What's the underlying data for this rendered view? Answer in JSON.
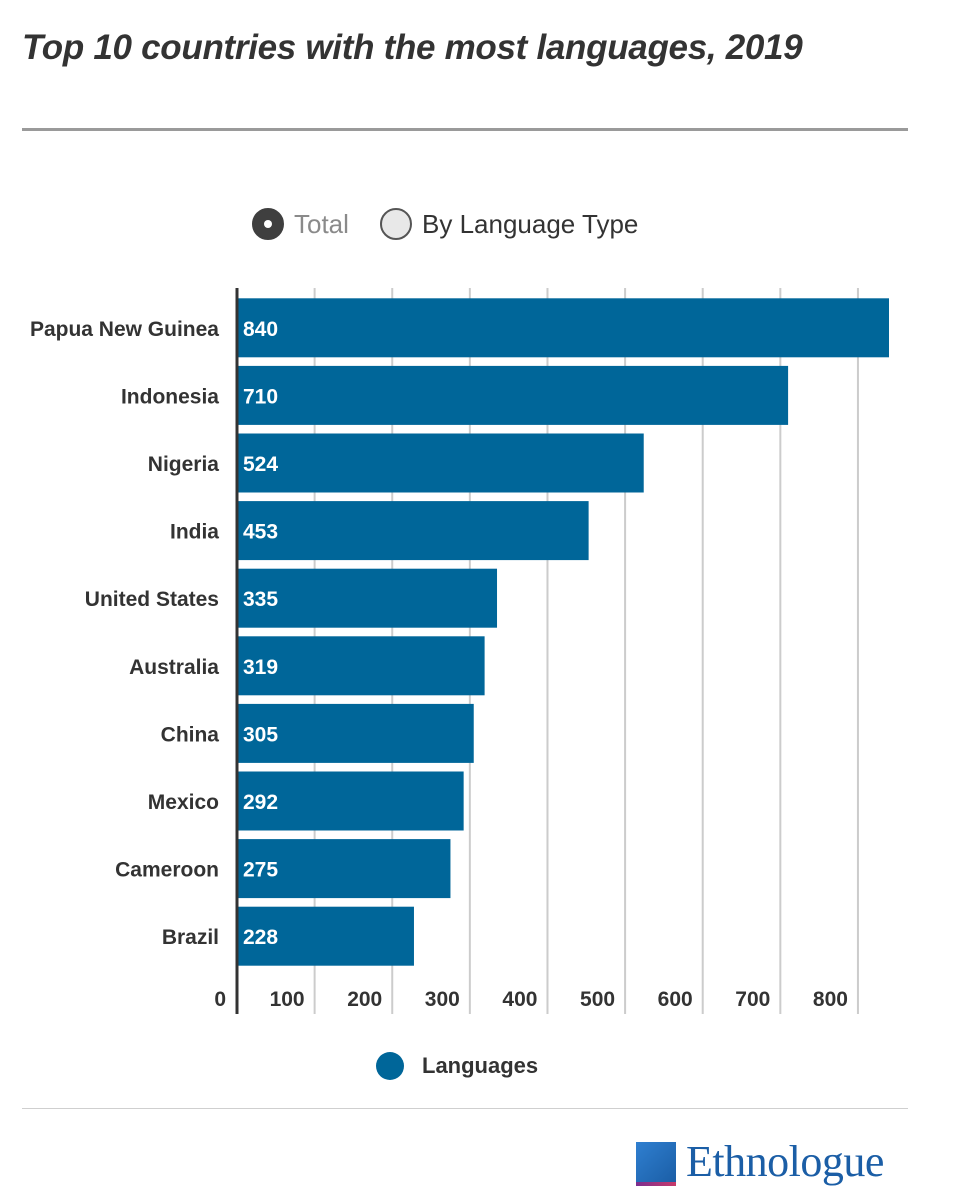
{
  "header": {
    "title": "Top 10 countries with the most languages, 2019"
  },
  "toggles": [
    {
      "label": "Total",
      "selected": true
    },
    {
      "label": "By Language Type",
      "selected": false
    }
  ],
  "legend": {
    "label": "Languages",
    "color": "#006699"
  },
  "logo": {
    "text": "Ethnologue"
  },
  "colors": {
    "bar": "#006699",
    "grid": "#cccccc",
    "axis": "#333333"
  },
  "chart_data": {
    "type": "bar",
    "orientation": "horizontal",
    "title": "Top 10 countries with the most languages, 2019",
    "categories": [
      "Papua New Guinea",
      "Indonesia",
      "Nigeria",
      "India",
      "United States",
      "Australia",
      "China",
      "Mexico",
      "Cameroon",
      "Brazil"
    ],
    "series": [
      {
        "name": "Languages",
        "values": [
          840,
          710,
          524,
          453,
          335,
          319,
          305,
          292,
          275,
          228
        ]
      }
    ],
    "xlim": [
      0,
      840
    ],
    "xticks": [
      0,
      100,
      200,
      300,
      400,
      500,
      600,
      700,
      800
    ],
    "grid": true,
    "data_labels": true,
    "legend_position": "bottom"
  }
}
